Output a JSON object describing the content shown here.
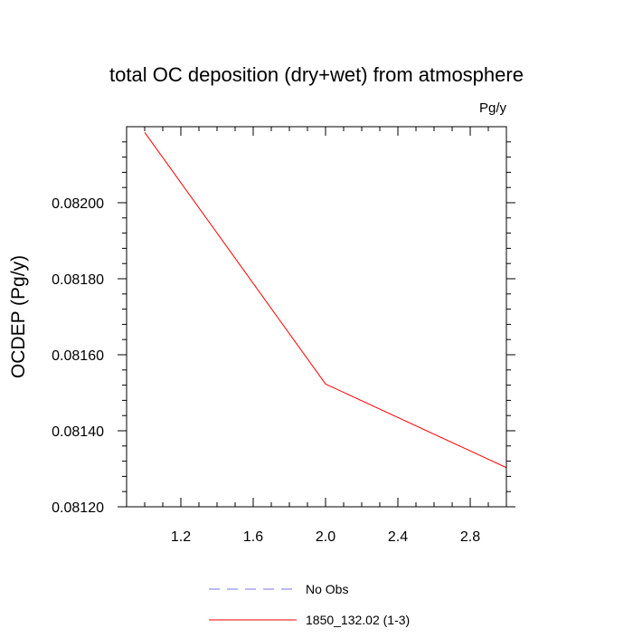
{
  "chart_data": {
    "type": "line",
    "title": "total OC deposition (dry+wet) from atmosphere",
    "units_label": "Pg/y",
    "xlabel": "",
    "ylabel": "OCDEP  (Pg/y)",
    "xlim": [
      0.9,
      3.0
    ],
    "ylim": [
      0.0812,
      0.0822
    ],
    "x_ticks": [
      1.2,
      1.6,
      2.0,
      2.4,
      2.8
    ],
    "x_tick_labels": [
      "1.2",
      "1.6",
      "2.0",
      "2.4",
      "2.8"
    ],
    "y_ticks": [
      0.0812,
      0.0814,
      0.0816,
      0.0818,
      0.082
    ],
    "y_tick_labels": [
      "0.08120",
      "0.08140",
      "0.08160",
      "0.08180",
      "0.08200"
    ],
    "grid": false,
    "legend_position": "bottom",
    "series": [
      {
        "name": "1850_132.02 (1-3)",
        "color": "#ff0000",
        "style": "solid",
        "x": [
          1,
          2,
          3
        ],
        "y": [
          0.082185,
          0.081523,
          0.081303
        ]
      }
    ],
    "legend": [
      {
        "label": "No Obs",
        "color": "#7777ee",
        "style": "dashed"
      },
      {
        "label": "1850_132.02 (1-3)",
        "color": "#ff0000",
        "style": "solid"
      }
    ]
  }
}
